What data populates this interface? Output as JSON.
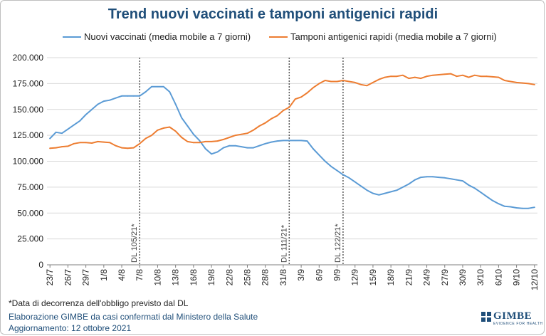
{
  "chart_data": {
    "type": "line",
    "title": "Trend nuovi vaccinati e tamponi antigenici rapidi",
    "xlabel": "",
    "ylabel": "",
    "ylim": [
      0,
      200000
    ],
    "y_ticks": [
      "0",
      "25.000",
      "50.000",
      "75.000",
      "100.000",
      "125.000",
      "150.000",
      "175.000",
      "200.000"
    ],
    "x_tick_labels": [
      "23/7",
      "26/7",
      "29/7",
      "1/8",
      "4/8",
      "7/8",
      "10/8",
      "13/8",
      "16/8",
      "19/8",
      "22/8",
      "25/8",
      "28/8",
      "31/8",
      "3/9",
      "6/9",
      "9/9",
      "12/9",
      "15/9",
      "18/9",
      "21/9",
      "24/9",
      "27/9",
      "30/9",
      "3/10",
      "6/10",
      "9/10",
      "12/10"
    ],
    "grid": "horizontal",
    "legend_position": "top",
    "series": [
      {
        "name": "Nuovi vaccinati (media mobile a 7 giorni)",
        "color": "#5b9bd5",
        "values": [
          122000,
          128000,
          127000,
          131000,
          135000,
          139000,
          145000,
          150000,
          155000,
          158000,
          159000,
          161000,
          163000,
          163000,
          163000,
          163000,
          167000,
          172000,
          172000,
          172000,
          167000,
          155000,
          142000,
          134000,
          126000,
          120000,
          112000,
          107000,
          109000,
          113000,
          115000,
          115000,
          114000,
          113000,
          113000,
          115000,
          117000,
          118500,
          119500,
          120000,
          120000,
          120000,
          120000,
          119500,
          112000,
          106000,
          100000,
          95000,
          91000,
          87000,
          84000,
          80000,
          76000,
          72000,
          69000,
          67500,
          69000,
          70500,
          72000,
          75000,
          78000,
          82000,
          84500,
          85000,
          85000,
          84500,
          84000,
          83000,
          82000,
          81000,
          77000,
          74000,
          70000,
          66000,
          62000,
          59000,
          56500,
          56000,
          55000,
          54500,
          54500,
          55500
        ]
      },
      {
        "name": "Tamponi antigenici rapidi (media mobile a 7 giorni)",
        "color": "#ed7d31",
        "values": [
          112500,
          113000,
          114000,
          114500,
          117000,
          118000,
          118000,
          117500,
          119000,
          118500,
          118000,
          115000,
          113000,
          112500,
          113000,
          117000,
          122000,
          125000,
          130000,
          132000,
          133000,
          129000,
          123000,
          119000,
          118000,
          118000,
          119000,
          119000,
          119500,
          121000,
          123000,
          125000,
          126000,
          127000,
          130000,
          134000,
          137000,
          141000,
          144000,
          149000,
          152000,
          160000,
          162000,
          166000,
          171000,
          175000,
          178000,
          177000,
          177000,
          178000,
          177000,
          176000,
          174000,
          173000,
          176000,
          179000,
          181000,
          182000,
          182000,
          183000,
          180000,
          181000,
          180000,
          182000,
          183000,
          183500,
          184000,
          184500,
          182000,
          183000,
          181000,
          183000,
          182000,
          182000,
          181500,
          181000,
          178000,
          177000,
          176000,
          175500,
          175000,
          174000
        ]
      }
    ],
    "annotations": [
      {
        "label": "DL 105/21*",
        "x_index": 15
      },
      {
        "label": "DL 111/21*",
        "x_index": 40
      },
      {
        "label": "DL 122/21*",
        "x_index": 49
      }
    ]
  },
  "footnote": "*Data di decorrenza dell'obbligo previsto dal DL",
  "credit_line1": "Elaborazione GIMBE da casi confermati dal Ministero della Salute",
  "credit_line2": "Aggiornamento: 12 ottobre 2021",
  "logo": {
    "word": "GIMBE",
    "tagline": "EVIDENCE FOR HEALTH",
    "color": "#1f4e79"
  }
}
